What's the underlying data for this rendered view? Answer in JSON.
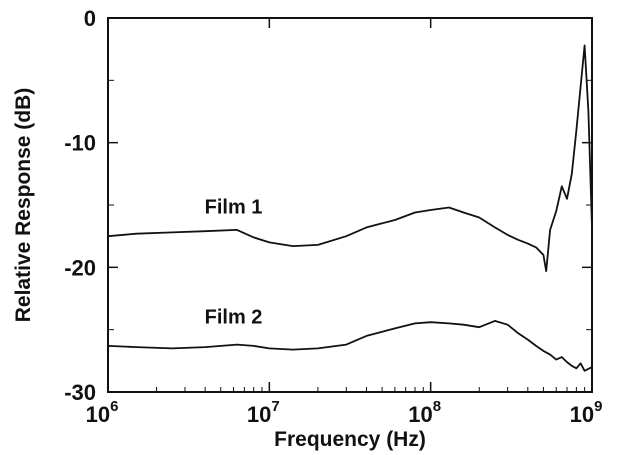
{
  "chart_data": {
    "type": "line",
    "xlabel": "Frequency (Hz)",
    "ylabel": "Relative Response (dB)",
    "x_scale": "log",
    "xlim": [
      1000000,
      1000000000
    ],
    "ylim": [
      -30,
      0
    ],
    "grid": false,
    "x_ticks": [
      {
        "value": 1000000,
        "base": "10",
        "exp": "6"
      },
      {
        "value": 10000000,
        "base": "10",
        "exp": "7"
      },
      {
        "value": 100000000,
        "base": "10",
        "exp": "8"
      },
      {
        "value": 1000000000,
        "base": "10",
        "exp": "9"
      }
    ],
    "y_ticks": [
      {
        "value": 0,
        "label": "0"
      },
      {
        "value": -10,
        "label": "-10"
      },
      {
        "value": -20,
        "label": "-20"
      },
      {
        "value": -30,
        "label": "-30"
      }
    ],
    "series": [
      {
        "name": "Film 1",
        "label_at": {
          "x": 6000000,
          "y": -15.7
        },
        "x": [
          1000000,
          1500000,
          2500000,
          4000000,
          6300000,
          8000000,
          10000000,
          14000000,
          20000000,
          30000000,
          40000000,
          60000000,
          80000000,
          100000000,
          130000000,
          160000000,
          200000000,
          250000000,
          300000000,
          350000000,
          400000000,
          450000000,
          500000000,
          520000000,
          550000000,
          600000000,
          650000000,
          700000000,
          750000000,
          800000000,
          850000000,
          900000000,
          950000000,
          1000000000
        ],
        "y": [
          -17.5,
          -17.3,
          -17.2,
          -17.1,
          -17.0,
          -17.6,
          -18.0,
          -18.3,
          -18.2,
          -17.5,
          -16.8,
          -16.2,
          -15.6,
          -15.4,
          -15.2,
          -15.6,
          -16.0,
          -16.8,
          -17.4,
          -17.8,
          -18.1,
          -18.4,
          -19.0,
          -20.3,
          -17.0,
          -15.5,
          -13.5,
          -14.5,
          -12.5,
          -9.0,
          -5.5,
          -2.2,
          -7.5,
          -16.8
        ]
      },
      {
        "name": "Film 2",
        "label_at": {
          "x": 6000000,
          "y": -24.5
        },
        "x": [
          1000000,
          1500000,
          2500000,
          4000000,
          6300000,
          8000000,
          10000000,
          14000000,
          20000000,
          30000000,
          40000000,
          60000000,
          80000000,
          100000000,
          130000000,
          160000000,
          200000000,
          250000000,
          300000000,
          350000000,
          400000000,
          450000000,
          500000000,
          550000000,
          600000000,
          650000000,
          700000000,
          750000000,
          800000000,
          850000000,
          900000000,
          1000000000
        ],
        "y": [
          -26.3,
          -26.4,
          -26.5,
          -26.4,
          -26.2,
          -26.3,
          -26.5,
          -26.6,
          -26.5,
          -26.2,
          -25.5,
          -24.9,
          -24.5,
          -24.4,
          -24.5,
          -24.6,
          -24.8,
          -24.3,
          -24.6,
          -25.3,
          -25.8,
          -26.3,
          -26.7,
          -27.0,
          -27.4,
          -27.2,
          -27.6,
          -27.9,
          -28.1,
          -27.7,
          -28.3,
          -28.0
        ]
      }
    ]
  }
}
